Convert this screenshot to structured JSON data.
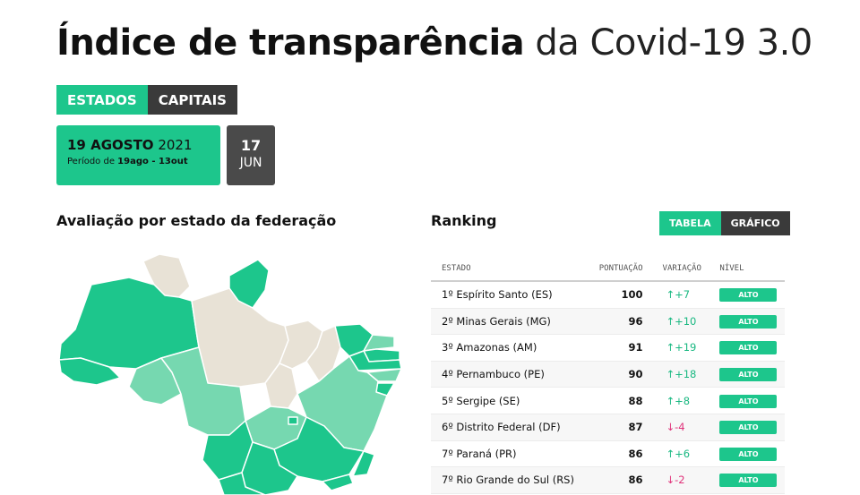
{
  "header": {
    "title_bold": "Índice de transparência",
    "title_light": "da Covid-19 3.0"
  },
  "segment": {
    "states": "ESTADOS",
    "capitals": "CAPITAIS"
  },
  "date_card": {
    "day": "19 AGOSTO",
    "year": "2021",
    "period_prefix": "Período de",
    "period_range": "19ago - 13out"
  },
  "date_small": {
    "day": "17",
    "month": "JUN"
  },
  "map": {
    "title": "Avaliação por estado da federação"
  },
  "ranking": {
    "title": "Ranking",
    "toggle": {
      "table": "TABELA",
      "chart": "GRÁFICO"
    },
    "columns": {
      "state": "ESTADO",
      "score": "PONTUAÇÃO",
      "change": "VARIAÇÃO",
      "level": "NÍVEL"
    },
    "rows": [
      {
        "state": "1º Espírito Santo (ES)",
        "score": "100",
        "change": "↑+7",
        "level": "ALTO"
      },
      {
        "state": "2º Minas Gerais (MG)",
        "score": "96",
        "change": "↑+10",
        "level": "ALTO"
      },
      {
        "state": "3º Amazonas (AM)",
        "score": "91",
        "change": "↑+19",
        "level": "ALTO"
      },
      {
        "state": "4º Pernambuco (PE)",
        "score": "90",
        "change": "↑+18",
        "level": "ALTO"
      },
      {
        "state": "5º Sergipe (SE)",
        "score": "88",
        "change": "↑+8",
        "level": "ALTO"
      },
      {
        "state": "6º Distrito Federal (DF)",
        "score": "87",
        "change": "↓-4",
        "level": "ALTO"
      },
      {
        "state": "7º Paraná (PR)",
        "score": "86",
        "change": "↑+6",
        "level": "ALTO"
      },
      {
        "state": "7º Rio Grande do Sul (RS)",
        "score": "86",
        "change": "↓-2",
        "level": "ALTO"
      }
    ]
  },
  "colors": {
    "accent": "#1dc68c",
    "dark": "#3a3a3a",
    "up": "#19b881",
    "down": "#e0327a"
  }
}
